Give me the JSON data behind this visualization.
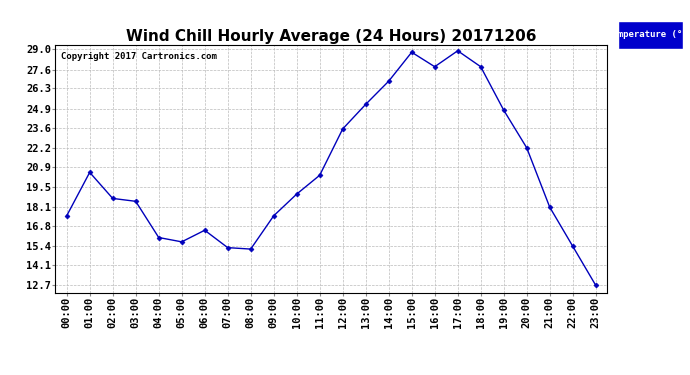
{
  "title": "Wind Chill Hourly Average (24 Hours) 20171206",
  "copyright": "Copyright 2017 Cartronics.com",
  "legend_label": "Temperature (°F)",
  "hours": [
    "00:00",
    "01:00",
    "02:00",
    "03:00",
    "04:00",
    "05:00",
    "06:00",
    "07:00",
    "08:00",
    "09:00",
    "10:00",
    "11:00",
    "12:00",
    "13:00",
    "14:00",
    "15:00",
    "16:00",
    "17:00",
    "18:00",
    "19:00",
    "20:00",
    "21:00",
    "22:00",
    "23:00"
  ],
  "values": [
    17.5,
    20.5,
    18.7,
    18.5,
    16.0,
    15.7,
    16.5,
    15.3,
    15.2,
    17.5,
    19.0,
    20.3,
    23.5,
    25.2,
    26.8,
    28.8,
    27.8,
    28.9,
    27.8,
    24.8,
    22.2,
    18.1,
    15.4,
    12.7
  ],
  "yticks": [
    12.7,
    14.1,
    15.4,
    16.8,
    18.1,
    19.5,
    20.9,
    22.2,
    23.6,
    24.9,
    26.3,
    27.6,
    29.0
  ],
  "ymin": 12.2,
  "ymax": 29.3,
  "line_color": "#0000bb",
  "marker_color": "#0000bb",
  "bg_color": "#ffffff",
  "plot_bg_color": "#ffffff",
  "grid_color": "#bbbbbb",
  "title_fontsize": 11,
  "axis_fontsize": 7.5,
  "copyright_fontsize": 6.5,
  "legend_bg_color": "#0000cc",
  "legend_text_color": "#ffffff"
}
